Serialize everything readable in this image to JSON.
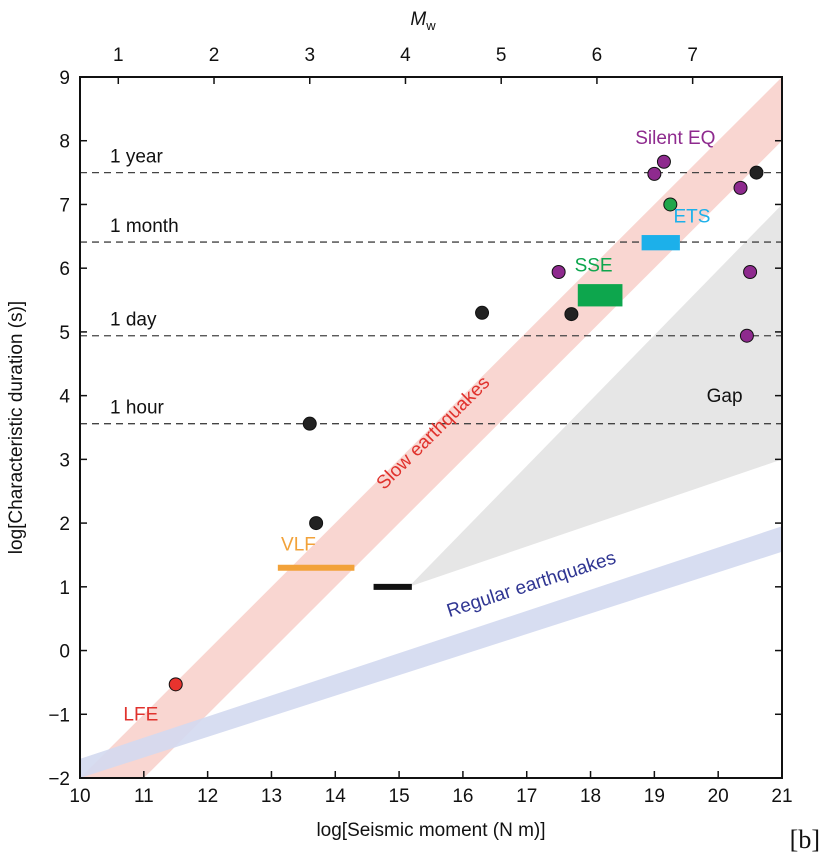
{
  "chart_data": {
    "type": "scatter",
    "panel_label": "[b]",
    "xlabel": "log[Seismic moment (N m)]",
    "ylabel": "log[Characteristic duration (s)]",
    "top_axis_label": "M",
    "top_axis_label_sub": "w",
    "xlim": [
      10,
      21
    ],
    "ylim": [
      -2,
      9
    ],
    "x_ticks": [
      "10",
      "11",
      "12",
      "13",
      "14",
      "15",
      "16",
      "17",
      "18",
      "19",
      "20",
      "21"
    ],
    "y_ticks": [
      "−2",
      "−1",
      "0",
      "1",
      "2",
      "3",
      "4",
      "5",
      "6",
      "7",
      "8",
      "9"
    ],
    "top_ticks": [
      {
        "label": "1",
        "mw": 1
      },
      {
        "label": "2",
        "mw": 2
      },
      {
        "label": "3",
        "mw": 3
      },
      {
        "label": "4",
        "mw": 4
      },
      {
        "label": "5",
        "mw": 5
      },
      {
        "label": "6",
        "mw": 6
      },
      {
        "label": "7",
        "mw": 7
      }
    ],
    "reference_lines": [
      {
        "label": "1 year",
        "y": 7.5
      },
      {
        "label": "1 month",
        "y": 6.41
      },
      {
        "label": "1 day",
        "y": 4.94
      },
      {
        "label": "1 hour",
        "y": 3.56
      }
    ],
    "bands": [
      {
        "label": "Slow earthquakes",
        "color": "#f8d2cc",
        "lower": [
          [
            11.0,
            -2.0
          ],
          [
            21.0,
            8.0
          ]
        ],
        "upper": [
          [
            10.0,
            -2.0
          ],
          [
            21.0,
            9.0
          ]
        ],
        "label_color": "#e0322d"
      },
      {
        "label": "Regular earthquakes",
        "color": "#d3d9ef",
        "lower": [
          [
            10.0,
            -2.0
          ],
          [
            21.0,
            1.55
          ]
        ],
        "upper": [
          [
            10.0,
            -1.7
          ],
          [
            21.0,
            1.95
          ]
        ],
        "label_color": "#2f3592"
      }
    ],
    "gap_region": {
      "label": "Gap",
      "color": "#e6e6e6",
      "points": [
        [
          15.15,
          1.0
        ],
        [
          21.0,
          7.0
        ],
        [
          21.0,
          3.0
        ]
      ]
    },
    "series": [
      {
        "name": "LFE",
        "color": "#e8332e",
        "label_color": "#e0322d",
        "points": [
          [
            11.5,
            -0.53
          ]
        ]
      },
      {
        "name": "Silent EQ",
        "color": "#8e2a8e",
        "label_color": "#8e2a8e",
        "points": [
          [
            17.5,
            5.94
          ],
          [
            19.0,
            7.48
          ],
          [
            19.15,
            7.67
          ],
          [
            20.35,
            7.26
          ],
          [
            20.5,
            5.94
          ],
          [
            20.45,
            4.94
          ]
        ]
      },
      {
        "name": "",
        "color": "#222222",
        "points": [
          [
            13.6,
            3.56
          ],
          [
            13.7,
            2.0
          ],
          [
            16.3,
            5.3
          ],
          [
            17.7,
            5.28
          ],
          [
            20.6,
            7.5
          ]
        ]
      },
      {
        "name": "",
        "color": "#1fa64a",
        "points": [
          [
            19.25,
            7.0
          ]
        ]
      }
    ],
    "bars": [
      {
        "name": "VLF",
        "color": "#f2a23a",
        "x": [
          13.1,
          14.3
        ],
        "y": [
          1.3,
          1.3
        ],
        "label_color": "#f2a23a"
      },
      {
        "name": "",
        "color": "#111111",
        "x": [
          14.6,
          15.2
        ],
        "y": [
          1.0,
          1.0
        ]
      }
    ],
    "boxes": [
      {
        "name": "SSE",
        "color": "#0da64d",
        "x": [
          17.8,
          18.5
        ],
        "y": [
          5.4,
          5.75
        ],
        "label_color": "#0da64d"
      },
      {
        "name": "ETS",
        "color": "#1cb0ea",
        "x": [
          18.8,
          19.4
        ],
        "y": [
          6.28,
          6.52
        ],
        "label_color": "#1cb0ea"
      }
    ]
  }
}
